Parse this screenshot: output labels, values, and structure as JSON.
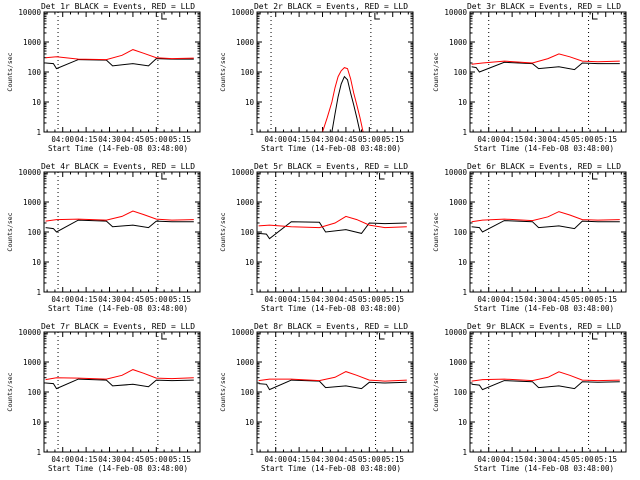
{
  "chart_data": [
    {
      "type": "line",
      "title": "Det 1r BLACK = Events, RED = LLD",
      "xlabel": "Start Time (14-Feb-08 03:48:00)",
      "ylabel": "Counts/sec",
      "yscale": "log",
      "ylim": [
        1,
        10000
      ],
      "y_ticks": [
        "1",
        "10",
        "100",
        "1000",
        "10000"
      ],
      "x_ticks": [
        "04:00",
        "04:15",
        "04:30",
        "04:45",
        "05:00",
        "05:15"
      ],
      "vertical_markers": [
        "03:57",
        "05:01"
      ],
      "series": [
        {
          "color": "#000000",
          "x": [
            "03:49",
            "03:54",
            "03:56",
            "04:10",
            "04:28",
            "04:32",
            "04:45",
            "04:55",
            "05:00",
            "05:10",
            "05:24"
          ],
          "values": [
            200,
            190,
            130,
            260,
            250,
            160,
            190,
            160,
            280,
            270,
            270
          ]
        },
        {
          "color": "#ff0000",
          "x": [
            "03:49",
            "03:56",
            "04:10",
            "04:28",
            "04:38",
            "04:45",
            "04:52",
            "05:00",
            "05:10",
            "05:24"
          ],
          "values": [
            300,
            320,
            270,
            260,
            360,
            560,
            420,
            300,
            280,
            290
          ]
        }
      ]
    },
    {
      "type": "line",
      "title": "Det 2r BLACK = Events, RED = LLD",
      "xlabel": "Start Time (14-Feb-08 03:48:00)",
      "ylabel": "Counts/sec",
      "yscale": "log",
      "ylim": [
        1,
        10000
      ],
      "y_ticks": [
        "1",
        "10",
        "100",
        "1000",
        "10000"
      ],
      "x_ticks": [
        "04:00",
        "04:15",
        "04:30",
        "04:45",
        "05:00",
        "05:15"
      ],
      "vertical_markers": [
        "03:57",
        "05:01"
      ],
      "series": [
        {
          "color": "#000000",
          "x": [
            "04:36",
            "04:38",
            "04:40",
            "04:42",
            "04:44",
            "04:46",
            "04:48",
            "04:50",
            "04:52",
            "04:54"
          ],
          "values": [
            1,
            4,
            15,
            40,
            70,
            55,
            20,
            8,
            3,
            1
          ]
        },
        {
          "color": "#ff0000",
          "x": [
            "04:30",
            "04:33",
            "04:36",
            "04:38",
            "04:40",
            "04:42",
            "04:44",
            "04:46",
            "04:48",
            "04:50",
            "04:52",
            "04:54",
            "04:56"
          ],
          "values": [
            1,
            3,
            10,
            30,
            70,
            110,
            140,
            130,
            60,
            20,
            8,
            3,
            1
          ]
        }
      ]
    },
    {
      "type": "line",
      "title": "Det 3r BLACK = Events, RED = LLD",
      "xlabel": "Start Time (14-Feb-08 03:48:00)",
      "ylabel": "Counts/sec",
      "yscale": "log",
      "ylim": [
        1,
        10000
      ],
      "y_ticks": [
        "1",
        "10",
        "100",
        "1000",
        "10000"
      ],
      "x_ticks": [
        "04:00",
        "04:15",
        "04:30",
        "04:45",
        "05:00",
        "05:15"
      ],
      "vertical_markers": [
        "04:00",
        "05:04"
      ],
      "series": [
        {
          "color": "#000000",
          "x": [
            "03:49",
            "03:52",
            "03:54",
            "04:10",
            "04:28",
            "04:32",
            "04:45",
            "04:55",
            "05:00",
            "05:10",
            "05:24"
          ],
          "values": [
            150,
            140,
            100,
            210,
            190,
            130,
            150,
            120,
            200,
            190,
            190
          ]
        },
        {
          "color": "#ff0000",
          "x": [
            "03:49",
            "03:56",
            "04:10",
            "04:28",
            "04:38",
            "04:45",
            "04:52",
            "05:00",
            "05:10",
            "05:24"
          ],
          "values": [
            180,
            200,
            230,
            200,
            280,
            400,
            320,
            230,
            220,
            230
          ]
        }
      ]
    },
    {
      "type": "line",
      "title": "Det 4r BLACK = Events, RED = LLD",
      "xlabel": "Start Time (14-Feb-08 03:48:00)",
      "ylabel": "Counts/sec",
      "yscale": "log",
      "ylim": [
        1,
        10000
      ],
      "y_ticks": [
        "1",
        "10",
        "100",
        "1000",
        "10000"
      ],
      "x_ticks": [
        "04:00",
        "04:15",
        "04:30",
        "04:45",
        "05:00",
        "05:15"
      ],
      "vertical_markers": [
        "03:57",
        "05:01"
      ],
      "series": [
        {
          "color": "#000000",
          "x": [
            "03:49",
            "03:54",
            "03:56",
            "04:10",
            "04:28",
            "04:32",
            "04:45",
            "04:55",
            "05:00",
            "05:10",
            "05:24"
          ],
          "values": [
            140,
            130,
            100,
            250,
            230,
            150,
            170,
            140,
            230,
            220,
            220
          ]
        },
        {
          "color": "#ff0000",
          "x": [
            "03:49",
            "03:56",
            "04:10",
            "04:28",
            "04:38",
            "04:45",
            "04:52",
            "05:00",
            "05:10",
            "05:24"
          ],
          "values": [
            230,
            260,
            270,
            250,
            330,
            500,
            380,
            270,
            250,
            260
          ]
        }
      ]
    },
    {
      "type": "line",
      "title": "Det 5r BLACK = Events, RED = LLD",
      "xlabel": "Start Time (14-Feb-08 03:48:00)",
      "ylabel": "Counts/sec",
      "yscale": "log",
      "ylim": [
        1,
        10000
      ],
      "y_ticks": [
        "1",
        "10",
        "100",
        "1000",
        "10000"
      ],
      "x_ticks": [
        "04:00",
        "04:15",
        "04:30",
        "04:45",
        "05:00",
        "05:15"
      ],
      "vertical_markers": [
        "04:00",
        "05:04"
      ],
      "series": [
        {
          "color": "#000000",
          "x": [
            "03:49",
            "03:54",
            "03:56",
            "04:10",
            "04:28",
            "04:32",
            "04:45",
            "04:55",
            "05:00",
            "05:10",
            "05:24"
          ],
          "values": [
            90,
            85,
            60,
            220,
            210,
            100,
            120,
            90,
            200,
            190,
            200
          ]
        },
        {
          "color": "#ff0000",
          "x": [
            "03:49",
            "03:56",
            "04:10",
            "04:28",
            "04:38",
            "04:45",
            "04:52",
            "05:00",
            "05:10",
            "05:24"
          ],
          "values": [
            160,
            170,
            150,
            140,
            200,
            330,
            260,
            170,
            140,
            150
          ]
        }
      ]
    },
    {
      "type": "line",
      "title": "Det 6r BLACK = Events, RED = LLD",
      "xlabel": "Start Time (14-Feb-08 03:48:00)",
      "ylabel": "Counts/sec",
      "yscale": "log",
      "ylim": [
        1,
        10000
      ],
      "y_ticks": [
        "1",
        "10",
        "100",
        "1000",
        "10000"
      ],
      "x_ticks": [
        "04:00",
        "04:15",
        "04:30",
        "04:45",
        "05:00",
        "05:15"
      ],
      "vertical_markers": [
        "04:00",
        "05:04"
      ],
      "series": [
        {
          "color": "#000000",
          "x": [
            "03:49",
            "03:54",
            "03:56",
            "04:10",
            "04:28",
            "04:32",
            "04:45",
            "04:55",
            "05:00",
            "05:10",
            "05:24"
          ],
          "values": [
            150,
            140,
            100,
            240,
            220,
            140,
            160,
            130,
            230,
            220,
            220
          ]
        },
        {
          "color": "#ff0000",
          "x": [
            "03:49",
            "03:56",
            "04:10",
            "04:28",
            "04:38",
            "04:45",
            "04:52",
            "05:00",
            "05:10",
            "05:24"
          ],
          "values": [
            220,
            250,
            270,
            240,
            320,
            480,
            370,
            260,
            250,
            260
          ]
        }
      ]
    },
    {
      "type": "line",
      "title": "Det 7r BLACK = Events, RED = LLD",
      "xlabel": "Start Time (14-Feb-08 03:48:00)",
      "ylabel": "Counts/sec",
      "yscale": "log",
      "ylim": [
        1,
        10000
      ],
      "y_ticks": [
        "1",
        "10",
        "100",
        "1000",
        "10000"
      ],
      "x_ticks": [
        "04:00",
        "04:15",
        "04:30",
        "04:45",
        "05:00",
        "05:15"
      ],
      "vertical_markers": [
        "03:57",
        "05:01"
      ],
      "series": [
        {
          "color": "#000000",
          "x": [
            "03:49",
            "03:54",
            "03:56",
            "04:10",
            "04:28",
            "04:32",
            "04:45",
            "04:55",
            "05:00",
            "05:10",
            "05:24"
          ],
          "values": [
            200,
            190,
            130,
            270,
            250,
            160,
            180,
            150,
            250,
            240,
            250
          ]
        },
        {
          "color": "#ff0000",
          "x": [
            "03:49",
            "03:56",
            "04:10",
            "04:28",
            "04:38",
            "04:45",
            "04:52",
            "05:00",
            "05:10",
            "05:24"
          ],
          "values": [
            260,
            300,
            290,
            270,
            360,
            560,
            420,
            290,
            280,
            300
          ]
        }
      ]
    },
    {
      "type": "line",
      "title": "Det 8r BLACK = Events, RED = LLD",
      "xlabel": "Start Time (14-Feb-08 03:48:00)",
      "ylabel": "Counts/sec",
      "yscale": "log",
      "ylim": [
        1,
        10000
      ],
      "y_ticks": [
        "1",
        "10",
        "100",
        "1000",
        "10000"
      ],
      "x_ticks": [
        "04:00",
        "04:15",
        "04:30",
        "04:45",
        "05:00",
        "05:15"
      ],
      "vertical_markers": [
        "04:00",
        "05:04"
      ],
      "series": [
        {
          "color": "#000000",
          "x": [
            "03:49",
            "03:54",
            "03:56",
            "04:10",
            "04:28",
            "04:32",
            "04:45",
            "04:55",
            "05:00",
            "05:10",
            "05:24"
          ],
          "values": [
            190,
            180,
            120,
            250,
            230,
            140,
            160,
            130,
            210,
            200,
            210
          ]
        },
        {
          "color": "#ff0000",
          "x": [
            "03:49",
            "03:56",
            "04:10",
            "04:28",
            "04:38",
            "04:45",
            "04:52",
            "05:00",
            "05:10",
            "05:24"
          ],
          "values": [
            240,
            270,
            270,
            240,
            310,
            480,
            360,
            250,
            230,
            250
          ]
        }
      ]
    },
    {
      "type": "line",
      "title": "Det 9r BLACK = Events, RED = LLD",
      "xlabel": "Start Time (14-Feb-08 03:48:00)",
      "ylabel": "Counts/sec",
      "yscale": "log",
      "ylim": [
        1,
        10000
      ],
      "y_ticks": [
        "1",
        "10",
        "100",
        "1000",
        "10000"
      ],
      "x_ticks": [
        "04:00",
        "04:15",
        "04:30",
        "04:45",
        "05:00",
        "05:15"
      ],
      "vertical_markers": [
        "04:00",
        "05:04"
      ],
      "series": [
        {
          "color": "#000000",
          "x": [
            "03:49",
            "03:54",
            "03:56",
            "04:10",
            "04:28",
            "04:32",
            "04:45",
            "04:55",
            "05:00",
            "05:10",
            "05:24"
          ],
          "values": [
            180,
            170,
            120,
            240,
            220,
            140,
            160,
            130,
            220,
            210,
            220
          ]
        },
        {
          "color": "#ff0000",
          "x": [
            "03:49",
            "03:56",
            "04:10",
            "04:28",
            "04:38",
            "04:45",
            "04:52",
            "05:00",
            "05:10",
            "05:24"
          ],
          "values": [
            230,
            260,
            270,
            240,
            310,
            470,
            360,
            250,
            240,
            250
          ]
        }
      ]
    }
  ]
}
